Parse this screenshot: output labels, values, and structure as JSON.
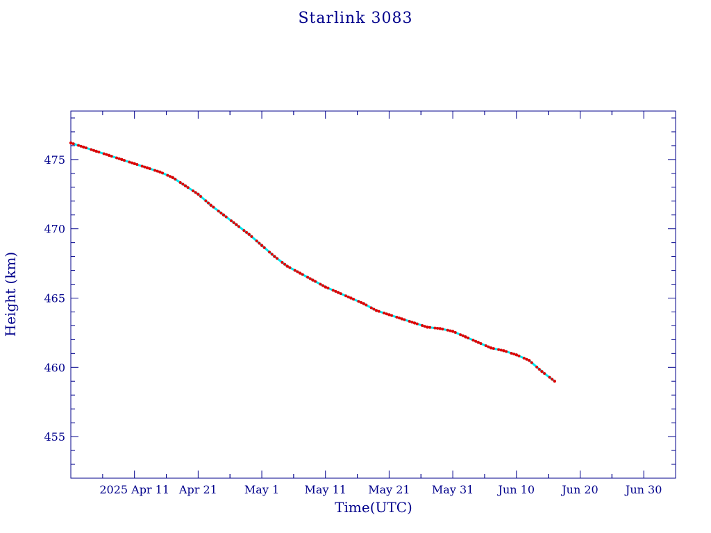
{
  "chart_data": {
    "type": "scatter",
    "title": "Starlink 3083",
    "xlabel": "Time(UTC)",
    "ylabel": "Height (km)",
    "xlim": [
      "2025-04-01",
      "2025-07-05"
    ],
    "ylim": [
      452,
      478.5
    ],
    "x_tick_labels": [
      {
        "date": "2025-04-11",
        "label": "2025 Apr 11"
      },
      {
        "date": "2025-04-21",
        "label": "Apr 21"
      },
      {
        "date": "2025-05-01",
        "label": "May  1"
      },
      {
        "date": "2025-05-11",
        "label": "May 11"
      },
      {
        "date": "2025-05-21",
        "label": "May 21"
      },
      {
        "date": "2025-05-31",
        "label": "May 31"
      },
      {
        "date": "2025-06-10",
        "label": "Jun 10"
      },
      {
        "date": "2025-06-20",
        "label": "Jun 20"
      },
      {
        "date": "2025-06-30",
        "label": "Jun 30"
      }
    ],
    "y_ticks": [
      455,
      460,
      465,
      470,
      475
    ],
    "grid": false,
    "colors": {
      "axis": "#00008b",
      "points": "#e00000",
      "line": "#00e5ee"
    },
    "series": [
      {
        "x": [
          "2025-04-01",
          "2025-04-03",
          "2025-04-05",
          "2025-04-07",
          "2025-04-09",
          "2025-04-11",
          "2025-04-13",
          "2025-04-15",
          "2025-04-17",
          "2025-04-19",
          "2025-04-21",
          "2025-04-23",
          "2025-04-25",
          "2025-04-27",
          "2025-04-29",
          "2025-05-01",
          "2025-05-03",
          "2025-05-05",
          "2025-05-07",
          "2025-05-09",
          "2025-05-11",
          "2025-05-13",
          "2025-05-15",
          "2025-05-17",
          "2025-05-19",
          "2025-05-21",
          "2025-05-23",
          "2025-05-25",
          "2025-05-27",
          "2025-05-29",
          "2025-05-31",
          "2025-06-02",
          "2025-06-04",
          "2025-06-06",
          "2025-06-08",
          "2025-06-10",
          "2025-06-12",
          "2025-06-14",
          "2025-06-16"
        ],
        "y": [
          476.2,
          475.9,
          475.6,
          475.3,
          475.0,
          474.7,
          474.4,
          474.1,
          473.7,
          473.1,
          472.5,
          471.7,
          471.0,
          470.3,
          469.6,
          468.8,
          468.0,
          467.3,
          466.8,
          466.3,
          465.8,
          465.4,
          465.0,
          464.6,
          464.1,
          463.8,
          463.5,
          463.2,
          462.9,
          462.8,
          462.6,
          462.2,
          461.8,
          461.4,
          461.2,
          460.9,
          460.5,
          459.7,
          459.0
        ]
      }
    ]
  }
}
